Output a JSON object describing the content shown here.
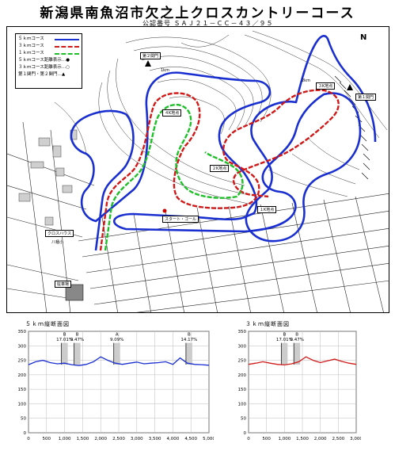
{
  "title": "新潟県南魚沼市欠之上クロスカントリーコース",
  "cert": "公認番号 ＳＡＪ２１－ＣＣ－４３／９５",
  "legend": [
    {
      "label": "５ｋｍコース",
      "color": "#1a2fd0",
      "style": "solid"
    },
    {
      "label": "３ｋｍコース",
      "color": "#d01a1a",
      "style": "dashed"
    },
    {
      "label": "１ｋｍコース",
      "color": "#1fbf2a",
      "style": "dashed"
    },
    {
      "label": "５ｋｍコース距離表示…●",
      "color": "#000",
      "style": "text"
    },
    {
      "label": "３ｋｍコース距離表示…○",
      "color": "#000",
      "style": "text"
    },
    {
      "label": "第１関門・第２関門…▲",
      "color": "#000",
      "style": "text"
    }
  ],
  "map_labels": {
    "gate2": "第２関門",
    "gate1": "第１関門",
    "km4": "４K地点",
    "km3": "３K地点",
    "km2": "２K地点",
    "km1": "１K地点",
    "start": "スタート・ゴール",
    "hut": "クロスハウス",
    "parking": "駐車場",
    "school": "八幡小",
    "label_1km": "1km",
    "label_2km": "2km"
  },
  "compass": "N",
  "chart_data": [
    {
      "type": "line",
      "title": "５ｋｍ縦断面図",
      "series": [
        {
          "color": "#1a2fd0",
          "x": [
            0,
            200,
            400,
            600,
            800,
            1000,
            1200,
            1400,
            1600,
            1800,
            2000,
            2200,
            2400,
            2600,
            2800,
            3000,
            3200,
            3400,
            3600,
            3800,
            4000,
            4200,
            4400,
            4600,
            4800,
            5000
          ],
          "y": [
            235,
            245,
            250,
            242,
            238,
            240,
            235,
            232,
            236,
            245,
            262,
            250,
            240,
            236,
            240,
            244,
            238,
            240,
            242,
            245,
            236,
            258,
            240,
            236,
            235,
            233
          ]
        }
      ],
      "xticks": [
        "0",
        "500",
        "1,000",
        "1,500",
        "2,000",
        "2,500",
        "3,000",
        "3,500",
        "4,000",
        "4,500",
        "5,000"
      ],
      "yticks": [
        "0",
        "50",
        "100",
        "150",
        "200",
        "250",
        "300",
        "350"
      ],
      "xlim": [
        0,
        5000
      ],
      "ylim": [
        0,
        350
      ],
      "annotations": [
        {
          "label": "B",
          "value": "17.01%",
          "x": 1000
        },
        {
          "label": "B",
          "value": "9.47%",
          "x": 1350
        },
        {
          "label": "A",
          "value": "9.09%",
          "x": 2450
        },
        {
          "label": "B",
          "value": "14.17%",
          "x": 4450
        }
      ]
    },
    {
      "type": "line",
      "title": "３ｋｍ縦断面図",
      "series": [
        {
          "color": "#d01a1a",
          "x": [
            0,
            200,
            400,
            600,
            800,
            1000,
            1200,
            1400,
            1600,
            1800,
            2000,
            2200,
            2400,
            2600,
            2800,
            3000
          ],
          "y": [
            236,
            240,
            245,
            240,
            236,
            234,
            238,
            245,
            262,
            250,
            242,
            248,
            254,
            246,
            240,
            236
          ]
        }
      ],
      "xticks": [
        "0",
        "500",
        "1,000",
        "1,500",
        "2,000",
        "2,500",
        "3,000"
      ],
      "yticks": [
        "0",
        "50",
        "100",
        "150",
        "200",
        "250",
        "300",
        "350"
      ],
      "xlim": [
        0,
        3000
      ],
      "ylim": [
        0,
        350
      ],
      "annotations": [
        {
          "label": "B",
          "value": "17.01%",
          "x": 1000
        },
        {
          "label": "B",
          "value": "9.47%",
          "x": 1350
        }
      ]
    }
  ]
}
